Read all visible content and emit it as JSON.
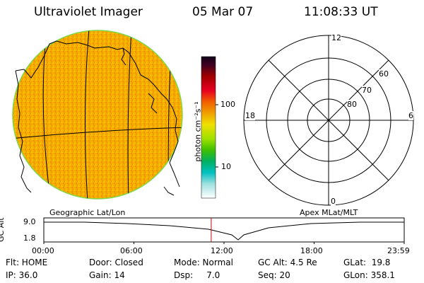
{
  "header": {
    "title": "Ultraviolet Imager",
    "date": "05 Mar 07",
    "time": "11:08:33 UT"
  },
  "colorbar": {
    "unit_label": "photon cm⁻²s⁻¹",
    "ticks": [
      "100",
      "10"
    ]
  },
  "geo_map": {
    "caption": "Geographic Lat/Lon"
  },
  "polar_plot": {
    "caption": "Apex MLat/MLT",
    "mlt_labels": {
      "top": "12",
      "right": "6",
      "bottom": "0",
      "left": "18"
    },
    "lat_labels": [
      "60",
      "70",
      "80"
    ]
  },
  "timeline": {
    "ylabel": "GC Alt",
    "yticks": [
      "9.0",
      "1.8"
    ],
    "xticks": [
      "00:00",
      "06:00",
      "12:00",
      "18:00",
      "23:59"
    ],
    "marker_time_hours": 11.14,
    "line_color": "#cc0000"
  },
  "status": {
    "row1": {
      "flt": "Flt: HOME",
      "door": "Door: Closed",
      "mode": "Mode: Normal",
      "gc_alt": "GC Alt: 4.5 Re",
      "glat": "GLat:  19.8"
    },
    "row2": {
      "ip": "IP: 36.0",
      "gain": "Gain: 14",
      "dsp": "Dsp:     7.0",
      "seq": "Seq: 20",
      "glon": "GLon: 358.1"
    }
  },
  "colors": {
    "disk_fill": "#f4a800",
    "disk_edge": "#7fd84a",
    "background": "#ffffff"
  }
}
